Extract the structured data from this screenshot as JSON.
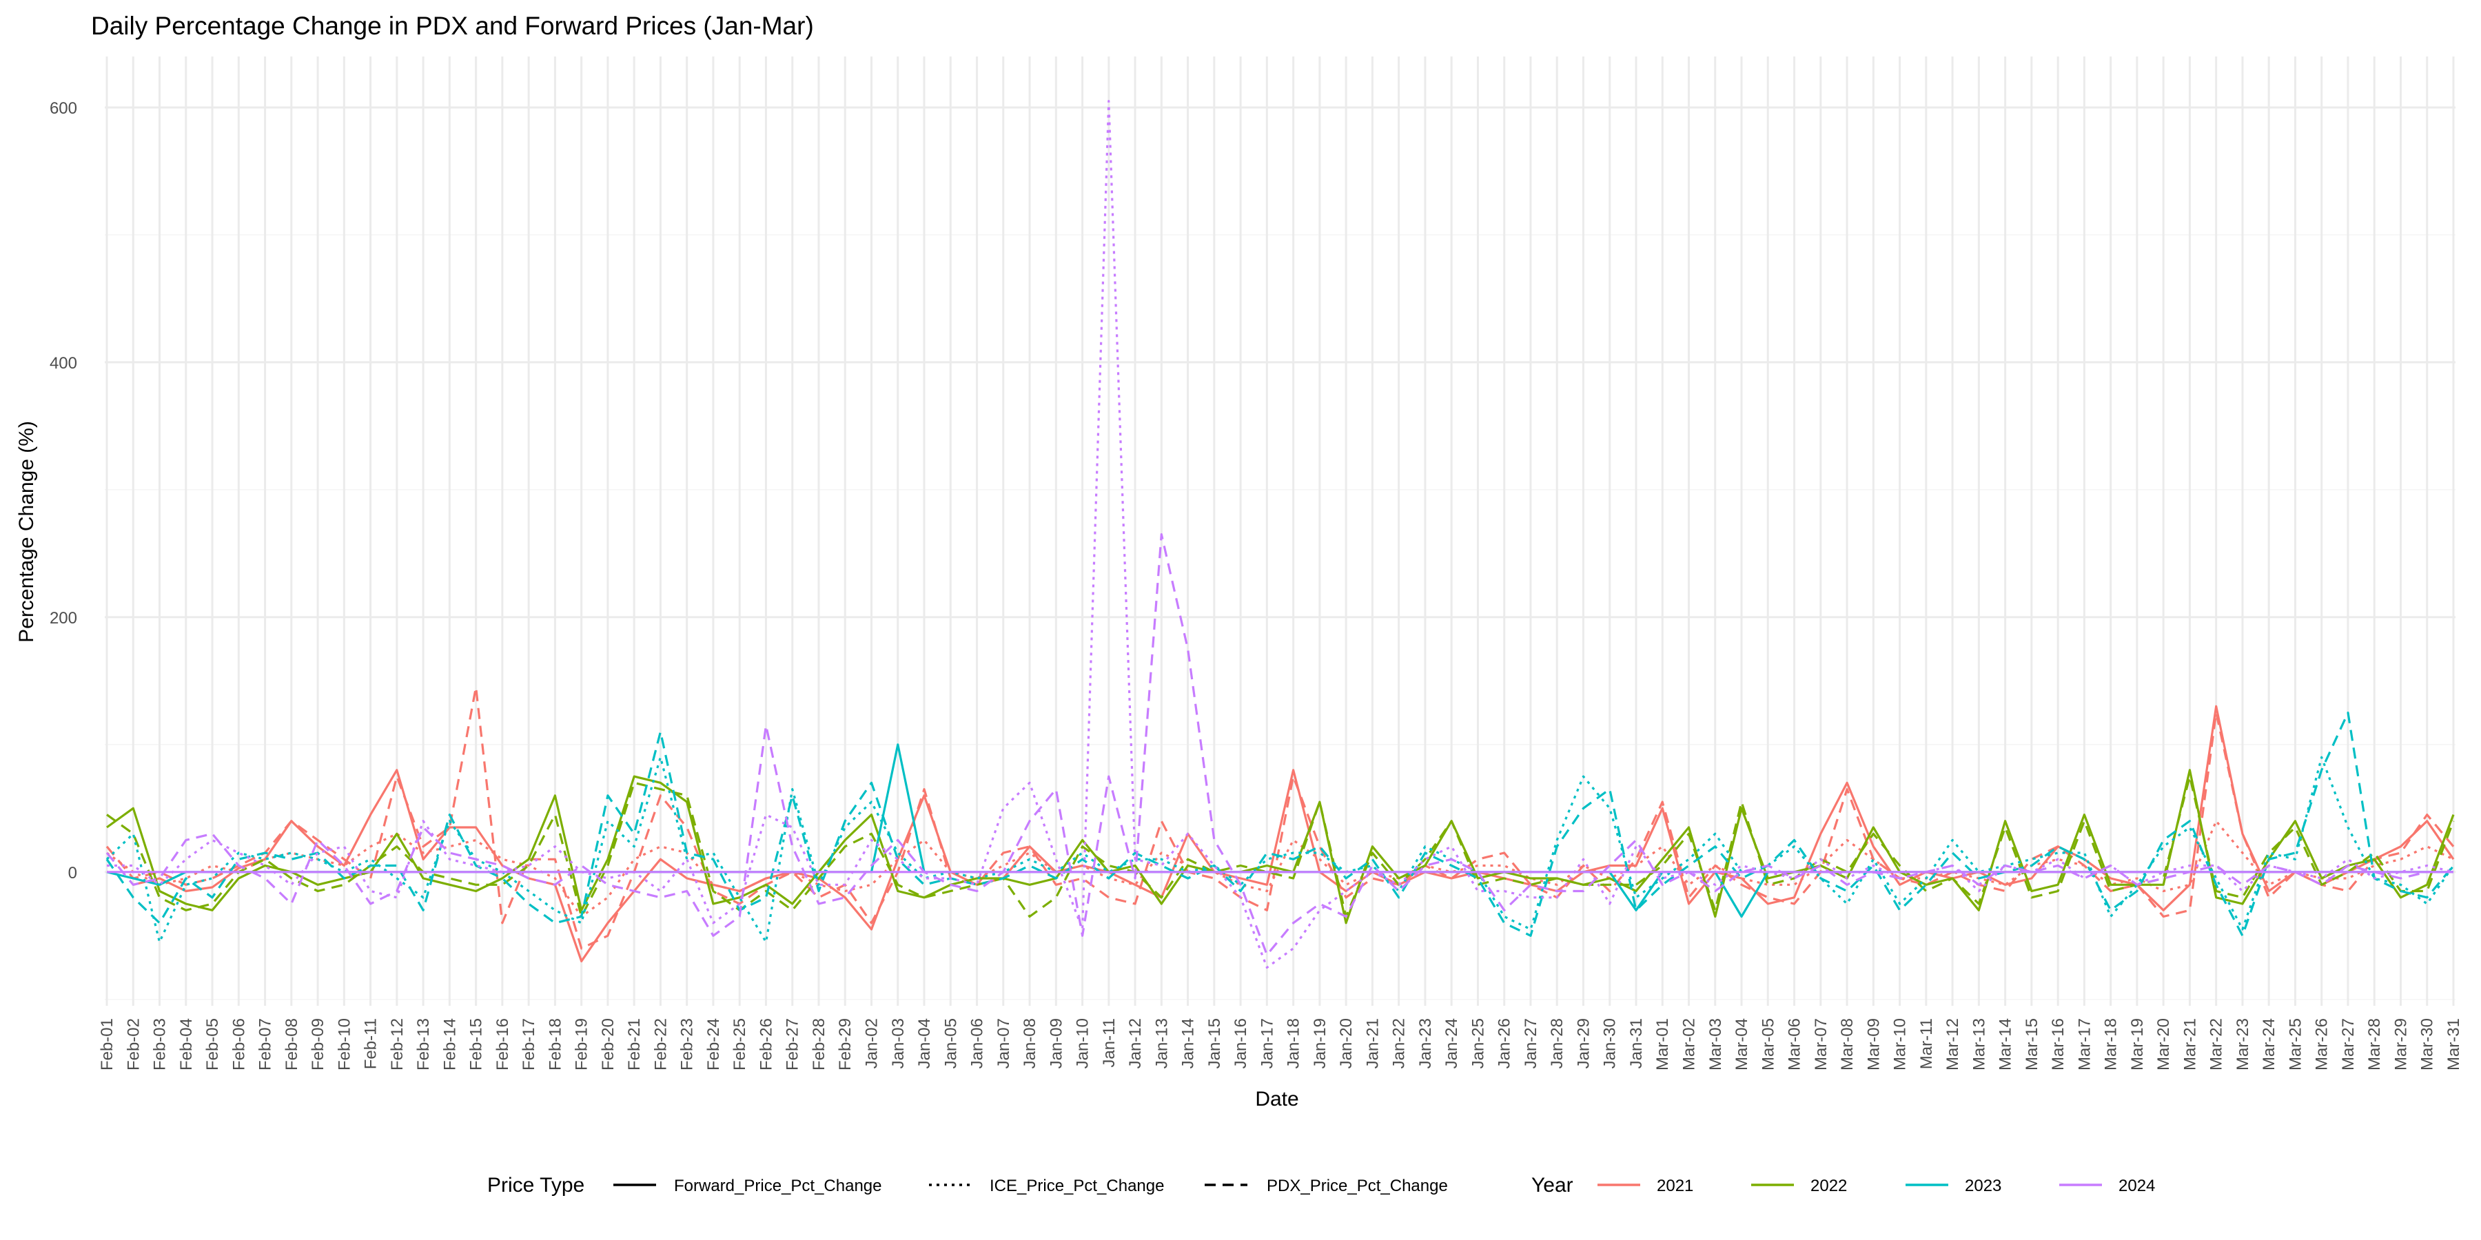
{
  "chart_data": {
    "type": "line",
    "title": "Daily Percentage Change in PDX and Forward Prices (Jan-Mar)",
    "xlabel": "Date",
    "ylabel": "Percentage Change (%)",
    "ylim": [
      -105,
      640
    ],
    "y_ticks": [
      0,
      200,
      400,
      600
    ],
    "grid": true,
    "legend_position": "bottom",
    "categories": [
      "Feb-01",
      "Feb-02",
      "Feb-03",
      "Feb-04",
      "Feb-05",
      "Feb-06",
      "Feb-07",
      "Feb-08",
      "Feb-09",
      "Feb-10",
      "Feb-11",
      "Feb-12",
      "Feb-13",
      "Feb-14",
      "Feb-15",
      "Feb-16",
      "Feb-17",
      "Feb-18",
      "Feb-19",
      "Feb-20",
      "Feb-21",
      "Feb-22",
      "Feb-23",
      "Feb-24",
      "Feb-25",
      "Feb-26",
      "Feb-27",
      "Feb-28",
      "Feb-29",
      "Jan-02",
      "Jan-03",
      "Jan-04",
      "Jan-05",
      "Jan-06",
      "Jan-07",
      "Jan-08",
      "Jan-09",
      "Jan-10",
      "Jan-11",
      "Jan-12",
      "Jan-13",
      "Jan-14",
      "Jan-15",
      "Jan-16",
      "Jan-17",
      "Jan-18",
      "Jan-19",
      "Jan-20",
      "Jan-21",
      "Jan-22",
      "Jan-23",
      "Jan-24",
      "Jan-25",
      "Jan-26",
      "Jan-27",
      "Jan-28",
      "Jan-29",
      "Jan-30",
      "Jan-31",
      "Mar-01",
      "Mar-02",
      "Mar-03",
      "Mar-04",
      "Mar-05",
      "Mar-06",
      "Mar-07",
      "Mar-08",
      "Mar-09",
      "Mar-10",
      "Mar-11",
      "Mar-12",
      "Mar-13",
      "Mar-14",
      "Mar-15",
      "Mar-16",
      "Mar-17",
      "Mar-18",
      "Mar-19",
      "Mar-20",
      "Mar-21",
      "Mar-22",
      "Mar-23",
      "Mar-24",
      "Mar-25",
      "Mar-26",
      "Mar-27",
      "Mar-28",
      "Mar-29",
      "Mar-30",
      "Mar-31"
    ],
    "linetype_legend": {
      "title": "Price Type",
      "entries": [
        {
          "label": "Forward_Price_Pct_Change",
          "dash": "solid"
        },
        {
          "label": "ICE_Price_Pct_Change",
          "dash": "dotted"
        },
        {
          "label": "PDX_Price_Pct_Change",
          "dash": "dashed"
        }
      ]
    },
    "color_legend": {
      "title": "Year",
      "entries": [
        {
          "label": "2021",
          "color": "#F8766D"
        },
        {
          "label": "2022",
          "color": "#7CAE00"
        },
        {
          "label": "2023",
          "color": "#00BFC4"
        },
        {
          "label": "2024",
          "color": "#C77CFF"
        }
      ]
    },
    "series": [
      {
        "year": "2021",
        "type": "Forward_Price_Pct_Change",
        "color": "#F8766D",
        "dash": "solid",
        "values": [
          null,
          -10,
          -5,
          -15,
          -12,
          3,
          10,
          40,
          20,
          5,
          45,
          80,
          10,
          35,
          35,
          5,
          -5,
          -10,
          -70,
          -40,
          -15,
          10,
          -5,
          -10,
          -15,
          -5,
          0,
          -5,
          -20,
          -45,
          10,
          60,
          0,
          -10,
          -5,
          20,
          0,
          5,
          0,
          -10,
          -20,
          30,
          0,
          -5,
          -10,
          80,
          0,
          -15,
          0,
          -10,
          0,
          -5,
          0,
          -5,
          -10,
          -15,
          0,
          5,
          5,
          50,
          -25,
          0,
          -5,
          -25,
          -20,
          30,
          70,
          20,
          -10,
          0,
          -5,
          0,
          -10,
          -5,
          20,
          10,
          -5,
          -10,
          -30,
          -10,
          130,
          30,
          -15,
          0,
          -10,
          0,
          10,
          20,
          40,
          10
        ]
      },
      {
        "year": "2021",
        "type": "PDX_Price_Pct_Change",
        "color": "#F8766D",
        "dash": "dashed",
        "values": [
          20,
          -5,
          0,
          -10,
          -5,
          5,
          15,
          40,
          25,
          10,
          -5,
          75,
          20,
          35,
          145,
          -40,
          10,
          10,
          -60,
          -50,
          0,
          60,
          35,
          -15,
          -25,
          -10,
          0,
          -20,
          -10,
          -40,
          0,
          65,
          -5,
          -10,
          15,
          20,
          -10,
          -5,
          -20,
          -25,
          40,
          0,
          -5,
          -20,
          -30,
          75,
          20,
          -20,
          -5,
          -10,
          5,
          -5,
          10,
          15,
          -10,
          -20,
          5,
          -15,
          10,
          55,
          -20,
          5,
          -10,
          -20,
          -25,
          0,
          65,
          10,
          -5,
          -10,
          0,
          -10,
          -15,
          10,
          20,
          5,
          -15,
          -10,
          -35,
          -30,
          125,
          30,
          -20,
          0,
          -10,
          -15,
          10,
          15,
          45,
          20
        ]
      },
      {
        "year": "2021",
        "type": "ICE_Price_Pct_Change",
        "color": "#F8766D",
        "dash": "dotted",
        "values": [
          15,
          0,
          -10,
          -5,
          5,
          0,
          10,
          15,
          10,
          5,
          20,
          30,
          15,
          20,
          25,
          10,
          5,
          -5,
          -35,
          -20,
          10,
          20,
          15,
          -10,
          -15,
          -5,
          0,
          -10,
          -15,
          -10,
          10,
          25,
          0,
          -5,
          5,
          15,
          0,
          5,
          -5,
          -10,
          15,
          5,
          0,
          -10,
          -15,
          25,
          10,
          -10,
          0,
          -5,
          5,
          0,
          5,
          5,
          -5,
          -10,
          5,
          -5,
          5,
          20,
          -10,
          5,
          -5,
          -10,
          -10,
          5,
          25,
          10,
          -5,
          -5,
          0,
          -5,
          -10,
          5,
          10,
          5,
          -10,
          -5,
          -15,
          -10,
          40,
          15,
          -10,
          0,
          -5,
          -5,
          5,
          10,
          20,
          10
        ]
      },
      {
        "year": "2022",
        "type": "Forward_Price_Pct_Change",
        "color": "#7CAE00",
        "dash": "solid",
        "values": [
          35,
          50,
          -15,
          -25,
          -30,
          -5,
          5,
          0,
          -10,
          -5,
          0,
          30,
          -5,
          -10,
          -15,
          -5,
          10,
          60,
          -30,
          10,
          75,
          70,
          55,
          -25,
          -20,
          -10,
          -25,
          0,
          25,
          45,
          -15,
          -20,
          -10,
          -5,
          -5,
          -10,
          -5,
          25,
          0,
          5,
          -25,
          5,
          0,
          0,
          5,
          0,
          55,
          -40,
          20,
          -5,
          5,
          40,
          -5,
          0,
          -5,
          -5,
          -10,
          -5,
          -15,
          10,
          35,
          -35,
          50,
          -5,
          0,
          5,
          -5,
          35,
          0,
          -10,
          -5,
          -30,
          40,
          -15,
          -10,
          45,
          -10,
          -10,
          -10,
          80,
          -20,
          -25,
          10,
          40,
          -5,
          5,
          10,
          -20,
          -10,
          45
        ]
      },
      {
        "year": "2022",
        "type": "PDX_Price_Pct_Change",
        "color": "#7CAE00",
        "dash": "dashed",
        "values": [
          45,
          30,
          -20,
          -30,
          -25,
          0,
          10,
          -5,
          -15,
          -10,
          5,
          20,
          0,
          -5,
          -10,
          -10,
          5,
          45,
          -35,
          5,
          70,
          65,
          60,
          -15,
          -30,
          -15,
          -30,
          -5,
          20,
          30,
          -10,
          -20,
          -15,
          -10,
          -5,
          -35,
          -20,
          20,
          5,
          0,
          -20,
          10,
          0,
          5,
          0,
          -5,
          55,
          -35,
          15,
          -10,
          10,
          40,
          -10,
          -5,
          -10,
          -5,
          -10,
          -10,
          -10,
          5,
          30,
          -30,
          55,
          -10,
          -5,
          10,
          0,
          30,
          5,
          -15,
          -5,
          -25,
          35,
          -20,
          -15,
          40,
          -15,
          -10,
          -5,
          75,
          -15,
          -20,
          15,
          35,
          -10,
          0,
          15,
          -15,
          -15,
          40
        ]
      },
      {
        "year": "2023",
        "type": "Forward_Price_Pct_Change",
        "color": "#00BFC4",
        "dash": "solid",
        "values": [
          0,
          -5,
          -10,
          0,
          0,
          0,
          0,
          0,
          0,
          0,
          0,
          0,
          0,
          0,
          0,
          0,
          0,
          0,
          0,
          0,
          0,
          0,
          0,
          0,
          0,
          0,
          0,
          0,
          0,
          0,
          100,
          0,
          0,
          0,
          0,
          0,
          0,
          0,
          0,
          0,
          0,
          0,
          0,
          0,
          0,
          0,
          0,
          0,
          0,
          0,
          0,
          0,
          0,
          0,
          0,
          0,
          0,
          0,
          -30,
          0,
          0,
          0,
          -35,
          0,
          0,
          0,
          0,
          0,
          0,
          0,
          0,
          0,
          0,
          0,
          0,
          0,
          0,
          0,
          0,
          0,
          0,
          0,
          0,
          0,
          0,
          0,
          0,
          0,
          0,
          0
        ]
      },
      {
        "year": "2023",
        "type": "PDX_Price_Pct_Change",
        "color": "#00BFC4",
        "dash": "dashed",
        "values": [
          10,
          -20,
          -40,
          -5,
          -20,
          10,
          15,
          10,
          15,
          -5,
          5,
          5,
          -30,
          45,
          5,
          -5,
          -25,
          -40,
          -35,
          60,
          30,
          110,
          15,
          10,
          -30,
          -20,
          60,
          -15,
          40,
          70,
          10,
          -10,
          -5,
          -10,
          -5,
          5,
          -5,
          10,
          -5,
          15,
          5,
          -5,
          5,
          -15,
          15,
          10,
          20,
          -5,
          10,
          -20,
          15,
          5,
          -5,
          -40,
          -50,
          20,
          50,
          65,
          -30,
          -10,
          5,
          20,
          -5,
          5,
          25,
          -5,
          -15,
          5,
          -30,
          -10,
          15,
          -5,
          0,
          5,
          20,
          10,
          -30,
          -15,
          25,
          40,
          -10,
          -50,
          10,
          15,
          80,
          125,
          -5,
          -15,
          -20,
          5
        ]
      },
      {
        "year": "2023",
        "type": "ICE_Price_Pct_Change",
        "color": "#00BFC4",
        "dash": "dotted",
        "values": [
          10,
          30,
          -55,
          -10,
          -5,
          15,
          10,
          15,
          10,
          0,
          10,
          -5,
          -20,
          40,
          10,
          0,
          -15,
          -30,
          -40,
          40,
          20,
          90,
          10,
          15,
          -20,
          -55,
          65,
          -10,
          35,
          55,
          15,
          -5,
          0,
          -5,
          0,
          10,
          0,
          15,
          0,
          10,
          10,
          0,
          5,
          -10,
          10,
          15,
          15,
          0,
          5,
          -15,
          20,
          10,
          0,
          -35,
          -45,
          25,
          75,
          50,
          -20,
          -5,
          10,
          30,
          0,
          5,
          20,
          -5,
          -25,
          10,
          -25,
          -5,
          25,
          0,
          5,
          10,
          15,
          15,
          -35,
          -10,
          20,
          35,
          -5,
          -45,
          15,
          10,
          90,
          35,
          -5,
          -10,
          -25,
          5
        ]
      },
      {
        "year": "2024",
        "type": "Forward_Price_Pct_Change",
        "color": "#C77CFF",
        "dash": "solid",
        "values": [
          0,
          0,
          0,
          0,
          0,
          0,
          0,
          0,
          0,
          0,
          0,
          0,
          0,
          0,
          0,
          0,
          0,
          0,
          0,
          0,
          0,
          0,
          0,
          0,
          0,
          0,
          0,
          0,
          0,
          0,
          0,
          0,
          0,
          0,
          0,
          0,
          0,
          0,
          0,
          0,
          0,
          0,
          0,
          0,
          0,
          0,
          0,
          0,
          0,
          0,
          0,
          0,
          0,
          0,
          0,
          0,
          0,
          0,
          0,
          0,
          0,
          0,
          0,
          0,
          0,
          0,
          0,
          0,
          0,
          0,
          0,
          0,
          0,
          0,
          0,
          0,
          0,
          0,
          0,
          0,
          0,
          0,
          0,
          0,
          0,
          0,
          0,
          0,
          0,
          0
        ]
      },
      {
        "year": "2024",
        "type": "PDX_Price_Pct_Change",
        "color": "#C77CFF",
        "dash": "dashed",
        "values": [
          15,
          -10,
          -5,
          25,
          30,
          5,
          -5,
          -25,
          25,
          5,
          -25,
          -15,
          35,
          15,
          10,
          5,
          -5,
          -10,
          5,
          -10,
          -15,
          -20,
          -15,
          -50,
          -35,
          115,
          20,
          -25,
          -20,
          5,
          25,
          0,
          -10,
          -15,
          0,
          40,
          65,
          -50,
          75,
          -5,
          265,
          175,
          25,
          -10,
          -65,
          -40,
          -25,
          -35,
          5,
          -15,
          5,
          10,
          0,
          -30,
          -10,
          -15,
          -15,
          5,
          25,
          -10,
          0,
          -15,
          0,
          5,
          -5,
          5,
          -10,
          0,
          -5,
          0,
          5,
          -10,
          5,
          0,
          5,
          -5,
          5,
          -10,
          -5,
          0,
          5,
          -10,
          5,
          0,
          -10,
          5,
          0,
          -5,
          0,
          0
        ]
      },
      {
        "year": "2024",
        "type": "ICE_Price_Pct_Change",
        "color": "#C77CFF",
        "dash": "dotted",
        "values": [
          5,
          5,
          -10,
          10,
          25,
          15,
          5,
          -10,
          15,
          20,
          -15,
          -20,
          40,
          10,
          5,
          0,
          5,
          20,
          0,
          -5,
          0,
          -15,
          10,
          -40,
          -25,
          45,
          35,
          -10,
          -10,
          25,
          10,
          -5,
          -5,
          -10,
          50,
          70,
          10,
          -45,
          605,
          10,
          5,
          30,
          5,
          -20,
          -75,
          -60,
          -30,
          -15,
          0,
          -10,
          10,
          20,
          -15,
          -15,
          -20,
          -20,
          10,
          -25,
          20,
          -5,
          0,
          -10,
          5,
          0,
          -5,
          10,
          -5,
          5,
          -5,
          0,
          5,
          -15,
          5,
          0,
          10,
          -5,
          5,
          -10,
          0,
          5,
          5,
          -15,
          5,
          0,
          -5,
          10,
          -5,
          0,
          5,
          0
        ]
      }
    ]
  }
}
